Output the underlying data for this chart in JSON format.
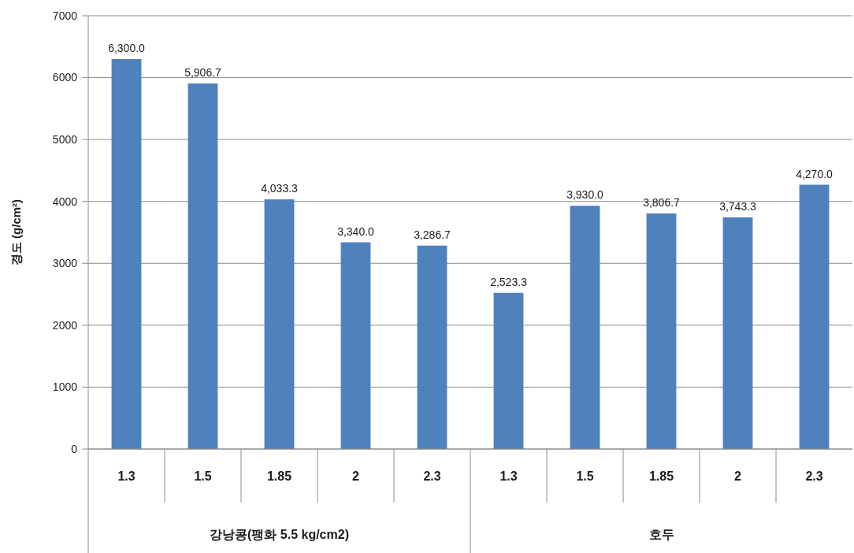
{
  "chart_data": {
    "type": "bar",
    "ylabel": "경도 (g/cm²)",
    "categories": [
      "1.3",
      "1.5",
      "1.85",
      "2",
      "2.3",
      "1.3",
      "1.5",
      "1.85",
      "2",
      "2.3"
    ],
    "values": [
      6300.0,
      5906.7,
      4033.3,
      3340.0,
      3286.7,
      2523.3,
      3930.0,
      3806.7,
      3743.3,
      4270.0
    ],
    "value_labels": [
      "6,300.0",
      "5,906.7",
      "4,033.3",
      "3,340.0",
      "3,286.7",
      "2,523.3",
      "3,930.0",
      "3,806.7",
      "3,743.3",
      "4,270.0"
    ],
    "color": "#4f81bd",
    "ylim": [
      0,
      7000
    ],
    "yticks": [
      0,
      1000,
      2000,
      3000,
      4000,
      5000,
      6000,
      7000
    ],
    "grid": "y",
    "annotations": [
      "강낭콩(팽화 5.5 kg/cm2)",
      "호두"
    ]
  }
}
